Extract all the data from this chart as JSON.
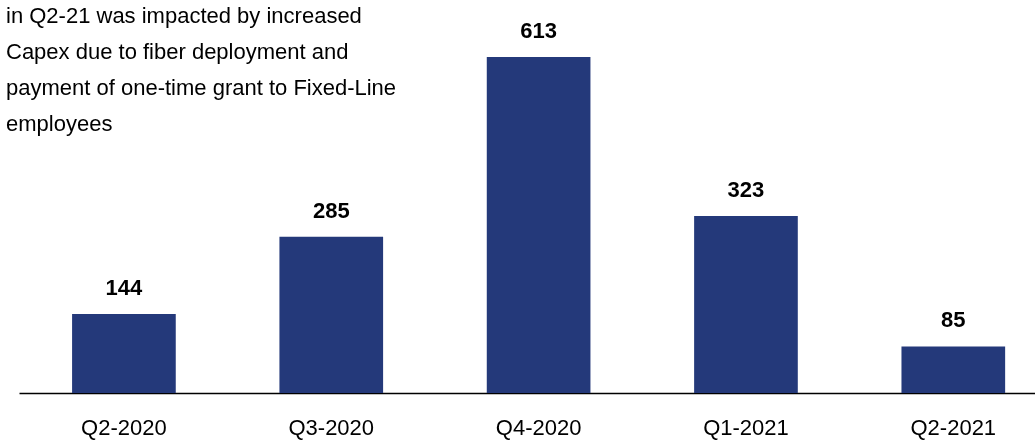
{
  "chart_data": {
    "type": "bar",
    "categories": [
      "Q2-2020",
      "Q3-2020",
      "Q4-2020",
      "Q1-2021",
      "Q2-2021"
    ],
    "values": [
      144,
      285,
      613,
      323,
      85
    ],
    "color": "#24397a",
    "data_labels": true,
    "annotations": [
      "in Q2-21 was impacted by increased Capex due to fiber deployment and payment of one-time grant to Fixed-Line employees"
    ]
  }
}
